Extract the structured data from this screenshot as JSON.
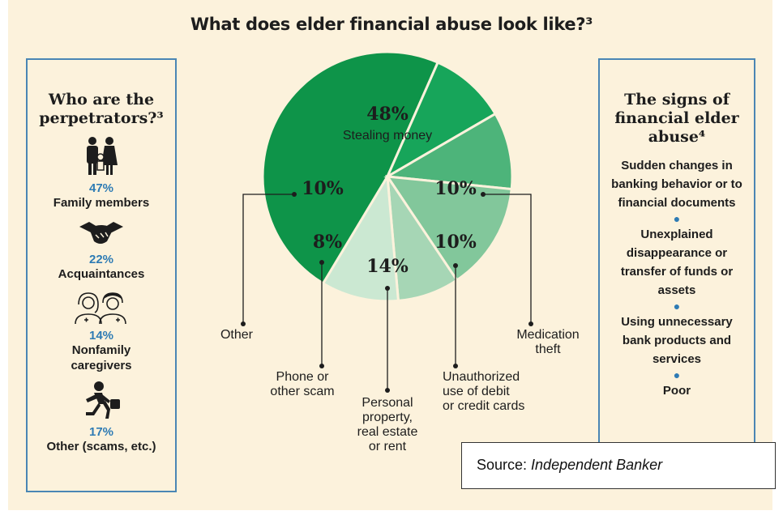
{
  "title": "What does elder financial abuse look like?³",
  "perpetrators": {
    "heading": "Who are the perpetrators?³",
    "items": [
      {
        "pct": "47%",
        "label": "Family members",
        "icon": "family-icon"
      },
      {
        "pct": "22%",
        "label": "Acquaintances",
        "icon": "handshake-icon"
      },
      {
        "pct": "14%",
        "label": "Nonfamily caregivers",
        "icon": "caregivers-icon"
      },
      {
        "pct": "17%",
        "label": "Other (scams, etc.)",
        "icon": "running-thief-icon"
      }
    ]
  },
  "signs": {
    "heading": "The signs of financial elder abuse⁴",
    "items": [
      "Sudden changes in banking behavior or to financial documents",
      "Unexplained disappearance or transfer of funds or assets",
      "Using unnecessary bank products and services",
      "Poor"
    ]
  },
  "chart_data": {
    "type": "pie",
    "start": "top-left, clockwise",
    "slices": [
      {
        "pct_label": "48%",
        "value": 48,
        "inner_label": "Stealing money",
        "color": "#0e9449"
      },
      {
        "pct_label": "10%",
        "value": 10,
        "outer_label": "Medication theft",
        "color": "#17a55a"
      },
      {
        "pct_label": "10%",
        "value": 10,
        "outer_label": "Unauthorized use of debit or credit cards",
        "color": "#4db47a"
      },
      {
        "pct_label": "14%",
        "value": 14,
        "outer_label": "Personal property, real estate or rent",
        "color": "#82c79b"
      },
      {
        "pct_label": "8%",
        "value": 8,
        "outer_label": "Phone or other scam",
        "color": "#a6d6b5"
      },
      {
        "pct_label": "10%",
        "value": 10,
        "outer_label": "Other",
        "color": "#cbe8d2"
      }
    ]
  },
  "source": {
    "prefix": "Source: ",
    "name": "Independent Banker"
  }
}
